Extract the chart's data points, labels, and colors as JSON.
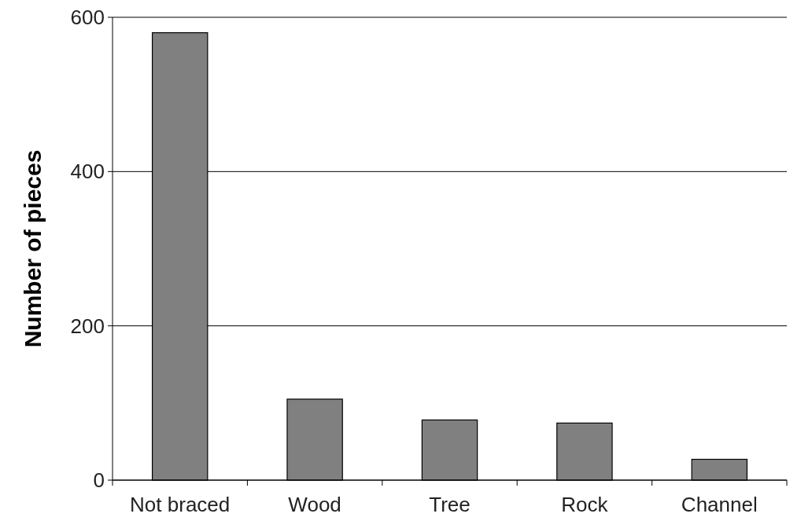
{
  "chart_data": {
    "type": "bar",
    "ylabel": "Number of pieces",
    "categories": [
      "Not braced",
      "Wood",
      "Tree",
      "Rock",
      "Channel"
    ],
    "values": [
      580,
      105,
      78,
      74,
      27
    ],
    "color": "#808080",
    "ylim": [
      0,
      600
    ],
    "yticks": [
      0,
      200,
      400,
      600
    ],
    "grid": "y"
  }
}
